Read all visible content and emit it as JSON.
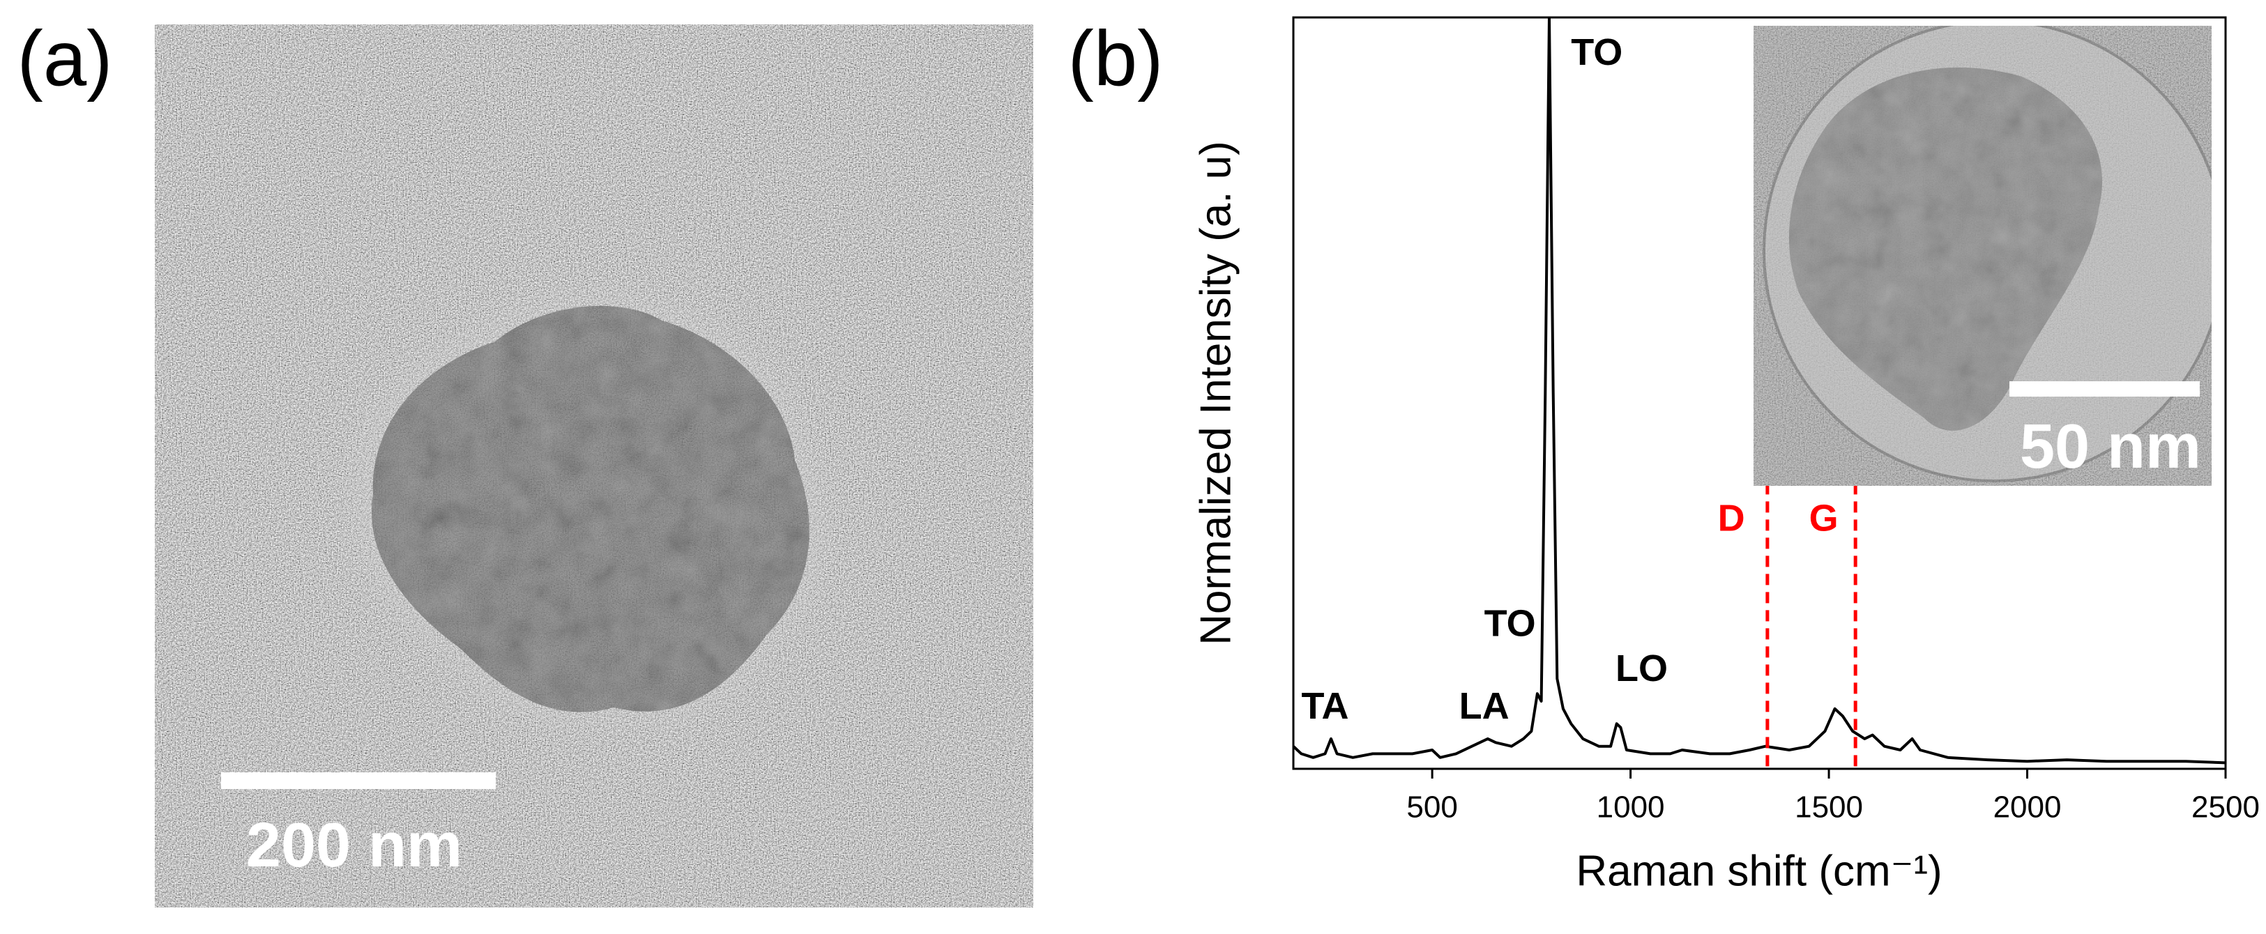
{
  "panel_a": {
    "label": "(a)",
    "scale_bar": "200 nm"
  },
  "chart_data": {
    "type": "line",
    "panel_label": "(b)",
    "x_label": "Raman shift (cm⁻¹)",
    "y_label": "Normalized Intensity (a. u)",
    "inset_scale_bar": "50 nm",
    "x": [
      150,
      170,
      200,
      230,
      245,
      260,
      300,
      350,
      400,
      450,
      500,
      520,
      560,
      600,
      640,
      660,
      700,
      730,
      750,
      765,
      775,
      785,
      795,
      805,
      815,
      830,
      850,
      880,
      920,
      950,
      965,
      975,
      990,
      1050,
      1100,
      1130,
      1200,
      1250,
      1300,
      1340,
      1400,
      1450,
      1490,
      1515,
      1535,
      1560,
      1590,
      1610,
      1640,
      1680,
      1710,
      1730,
      1800,
      1900,
      2000,
      2100,
      2200,
      2300,
      2400,
      2500
    ],
    "values": [
      0.03,
      0.02,
      0.015,
      0.02,
      0.04,
      0.02,
      0.015,
      0.02,
      0.02,
      0.02,
      0.025,
      0.015,
      0.02,
      0.03,
      0.04,
      0.035,
      0.03,
      0.04,
      0.05,
      0.1,
      0.09,
      0.5,
      1.0,
      0.5,
      0.12,
      0.08,
      0.06,
      0.04,
      0.03,
      0.03,
      0.06,
      0.055,
      0.025,
      0.02,
      0.02,
      0.025,
      0.02,
      0.02,
      0.025,
      0.03,
      0.025,
      0.03,
      0.05,
      0.08,
      0.07,
      0.05,
      0.04,
      0.045,
      0.03,
      0.025,
      0.04,
      0.025,
      0.015,
      0.012,
      0.01,
      0.012,
      0.01,
      0.01,
      0.01,
      0.008
    ],
    "color": "#000000",
    "xlim": [
      150,
      2500
    ],
    "xticks": [
      500,
      1000,
      1500,
      2000,
      2500
    ],
    "ylim": [
      0,
      1.0
    ],
    "annotations": [
      {
        "text": "TA",
        "x": 230,
        "y": 0.08,
        "color": "#000000"
      },
      {
        "text": "LA",
        "x": 631,
        "y": 0.08,
        "color": "#000000"
      },
      {
        "text": "TO",
        "x": 696,
        "y": 0.19,
        "color": "#000000"
      },
      {
        "text": "TO",
        "x": 915,
        "y": 0.95,
        "color": "#000000"
      },
      {
        "text": "LO",
        "x": 1028,
        "y": 0.13,
        "color": "#000000"
      },
      {
        "text": "D",
        "x": 1254,
        "y": 0.33,
        "color": "#ff0000"
      },
      {
        "text": "G",
        "x": 1487,
        "y": 0.33,
        "color": "#ff0000"
      }
    ],
    "vlines": [
      {
        "x": 1345,
        "ymax": 0.38,
        "color": "#ff0000"
      },
      {
        "x": 1567,
        "ymax": 0.38,
        "color": "#ff0000"
      }
    ]
  }
}
